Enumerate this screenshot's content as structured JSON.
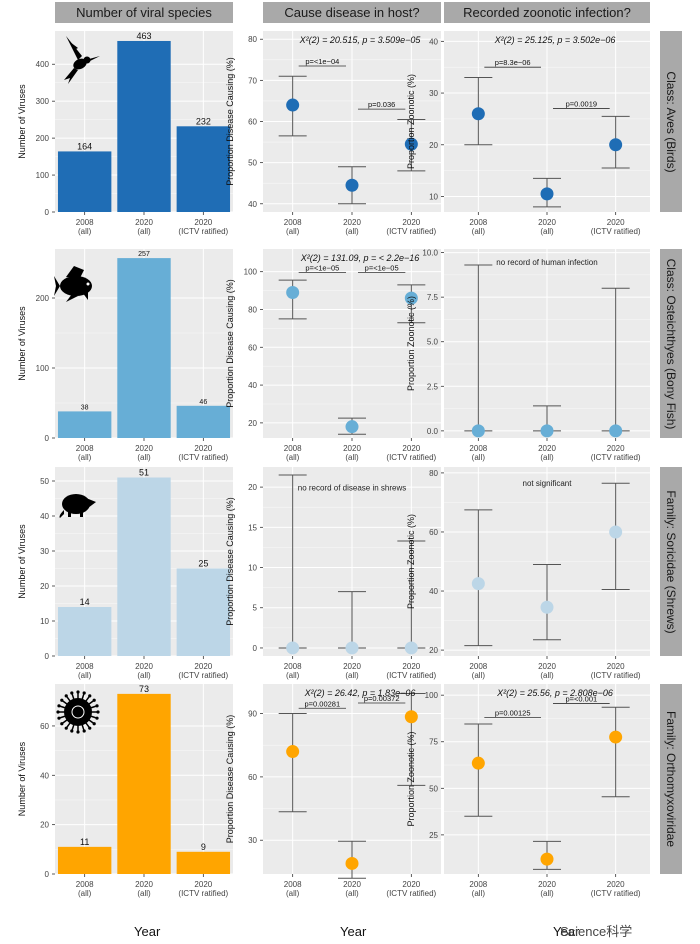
{
  "column_headers": [
    "Number of viral species",
    "Cause disease in host?",
    "Recorded zoonotic infection?"
  ],
  "row_headers": [
    "Class: Aves (Birds)",
    "Class: Osteichthyes (Bony Fish)",
    "Family: Soricidae (Shrews)",
    "Family: Orthomyxoviridae"
  ],
  "x_title": "Year",
  "watermark": "Science科学",
  "categories": [
    "2008\n(all)",
    "2020\n(all)",
    "2020\n(ICTV ratified)"
  ],
  "colors": {
    "aves": "#1f6db5",
    "fish": "#67aed6",
    "shrew": "#bcd6e7",
    "orthomyxo": "#ffa500",
    "panel_bg": "#ebebeb",
    "grid": "#ffffff",
    "errorbar": "#555555"
  },
  "icons": [
    "hummingbird-icon",
    "fish-icon",
    "shrew-icon",
    "virus-icon"
  ],
  "chart_data": [
    {
      "type": "bar",
      "row": 0,
      "ylabel": "Number of Viruses",
      "ylim": [
        0,
        490
      ],
      "yticks": [
        0,
        100,
        200,
        300,
        400
      ],
      "values": [
        164,
        463,
        232
      ],
      "labels": [
        "164",
        "463",
        "232"
      ]
    },
    {
      "type": "scatter",
      "row": 0,
      "ylabel": "Proportion Disease Causing (%)",
      "ylim": [
        38,
        82
      ],
      "yticks": [
        40,
        50,
        60,
        70,
        80
      ],
      "points": [
        {
          "y": 64,
          "lo": 56.5,
          "hi": 71
        },
        {
          "y": 44.5,
          "lo": 40,
          "hi": 49
        },
        {
          "y": 54.5,
          "lo": 48,
          "hi": 60.5
        }
      ],
      "stat": "X²(2) = 20.515, p = 3.509e−05",
      "brackets": [
        {
          "a": 0,
          "b": 1,
          "y": 73.5,
          "label": "p=<1e−04"
        },
        {
          "a": 1,
          "b": 2,
          "y": 63,
          "label": "p=0.036"
        }
      ]
    },
    {
      "type": "scatter",
      "row": 0,
      "ylabel": "Proportion Zoonotic (%)",
      "ylim": [
        7,
        42
      ],
      "yticks": [
        10,
        20,
        30,
        40
      ],
      "points": [
        {
          "y": 26,
          "lo": 20,
          "hi": 33
        },
        {
          "y": 10.5,
          "lo": 8,
          "hi": 13.5
        },
        {
          "y": 20,
          "lo": 15.5,
          "hi": 25.5
        }
      ],
      "stat": "X²(2) = 25.125, p = 3.502e−06",
      "brackets": [
        {
          "a": 0,
          "b": 1,
          "y": 35,
          "label": "p=8.3e−06"
        },
        {
          "a": 1,
          "b": 2,
          "y": 27,
          "label": "p=0.0019"
        }
      ]
    },
    {
      "type": "bar",
      "row": 1,
      "ylabel": "Number of Viruses",
      "ylim": [
        0,
        270
      ],
      "yticks": [
        0,
        100,
        200
      ],
      "values": [
        38,
        257,
        46
      ],
      "labels": [
        "38",
        "257",
        "46"
      ]
    },
    {
      "type": "scatter",
      "row": 1,
      "ylabel": "Proportion Disease Causing (%)",
      "ylim": [
        12,
        112
      ],
      "yticks": [
        20,
        40,
        60,
        80,
        100
      ],
      "points": [
        {
          "y": 89,
          "lo": 75,
          "hi": 95.5
        },
        {
          "y": 18,
          "lo": 14,
          "hi": 22.5
        },
        {
          "y": 86,
          "lo": 73,
          "hi": 93
        }
      ],
      "stat": "X²(2) = 131.09, p = < 2.2e−16",
      "brackets": [
        {
          "a": 0,
          "b": 1,
          "y": 99.5,
          "label": "p=<1e−05"
        },
        {
          "a": 1,
          "b": 2,
          "y": 99.5,
          "label": "p=<1e−05"
        }
      ]
    },
    {
      "type": "scatter",
      "row": 1,
      "ylabel": "Proportion Zoonotic (%)",
      "ylim": [
        -0.4,
        10.2
      ],
      "yticks": [
        0.0,
        2.5,
        5.0,
        7.5,
        10.0
      ],
      "tick_decimals": 1,
      "points": [
        {
          "y": 0,
          "lo": 0,
          "hi": 9.3
        },
        {
          "y": 0,
          "lo": 0,
          "hi": 1.4
        },
        {
          "y": 0,
          "lo": 0,
          "hi": 8.0
        }
      ],
      "note": "no record of human infection",
      "note_y": 9.3
    },
    {
      "type": "bar",
      "row": 2,
      "ylabel": "Number of Viruses",
      "ylim": [
        0,
        54
      ],
      "yticks": [
        0,
        10,
        20,
        30,
        40,
        50
      ],
      "values": [
        14,
        51,
        25
      ],
      "labels": [
        "14",
        "51",
        "25"
      ]
    },
    {
      "type": "scatter",
      "row": 2,
      "ylabel": "Proportion Disease Causing (%)",
      "ylim": [
        -1,
        22.5
      ],
      "yticks": [
        0,
        5,
        10,
        15,
        20
      ],
      "points": [
        {
          "y": 0,
          "lo": 0,
          "hi": 21.5
        },
        {
          "y": 0,
          "lo": 0,
          "hi": 7
        },
        {
          "y": 0,
          "lo": 0,
          "hi": 13.3
        }
      ],
      "note": "no record of disease in shrews",
      "note_y": 19.6
    },
    {
      "type": "scatter",
      "row": 2,
      "ylabel": "Proportion Zoonotic (%)",
      "ylim": [
        18,
        82
      ],
      "yticks": [
        20,
        40,
        60,
        80
      ],
      "points": [
        {
          "y": 42.5,
          "lo": 21.5,
          "hi": 67.5
        },
        {
          "y": 34.5,
          "lo": 23.5,
          "hi": 49
        },
        {
          "y": 60,
          "lo": 40.5,
          "hi": 76.5
        }
      ],
      "note": "not significant",
      "note_y": 75.5
    },
    {
      "type": "bar",
      "row": 3,
      "ylabel": "Number of Viruses",
      "ylim": [
        0,
        77
      ],
      "yticks": [
        0,
        20,
        40,
        60
      ],
      "values": [
        11,
        73,
        9
      ],
      "labels": [
        "11",
        "73",
        "9"
      ]
    },
    {
      "type": "scatter",
      "row": 3,
      "ylabel": "Proportion Disease Causing (%)",
      "ylim": [
        14,
        104
      ],
      "yticks": [
        30,
        60,
        90
      ],
      "ytick_labels": [
        "30",
        "60",
        "90"
      ],
      "points": [
        {
          "y": 72,
          "lo": 43.5,
          "hi": 90
        },
        {
          "y": 19,
          "lo": 12,
          "hi": 29.5
        },
        {
          "y": 88.5,
          "lo": 56,
          "hi": 99.5
        }
      ],
      "stat": "X²(2) = 26.42, p = 1.83e−06",
      "brackets": [
        {
          "a": 0,
          "b": 1,
          "y": 92.5,
          "label": "p=0.00281"
        },
        {
          "a": 1,
          "b": 2,
          "y": 95,
          "label": "p=0.00372"
        }
      ]
    },
    {
      "type": "scatter",
      "row": 3,
      "ylabel": "Proportion Zoonotic (%)",
      "ylim": [
        4,
        106
      ],
      "yticks": [
        25,
        50,
        75,
        100
      ],
      "ytick_labels": [
        "25",
        "50",
        "75",
        "100"
      ],
      "points": [
        {
          "y": 63.5,
          "lo": 35,
          "hi": 84.5
        },
        {
          "y": 12,
          "lo": 6.5,
          "hi": 21.5
        },
        {
          "y": 77.5,
          "lo": 45.5,
          "hi": 93.5
        }
      ],
      "stat": "X²(2) = 25.56, p = 2.808e−06",
      "brackets": [
        {
          "a": 0,
          "b": 1,
          "y": 88,
          "label": "p=0.00125"
        },
        {
          "a": 1,
          "b": 2,
          "y": 95.5,
          "label": "p=<0.001"
        }
      ]
    }
  ]
}
